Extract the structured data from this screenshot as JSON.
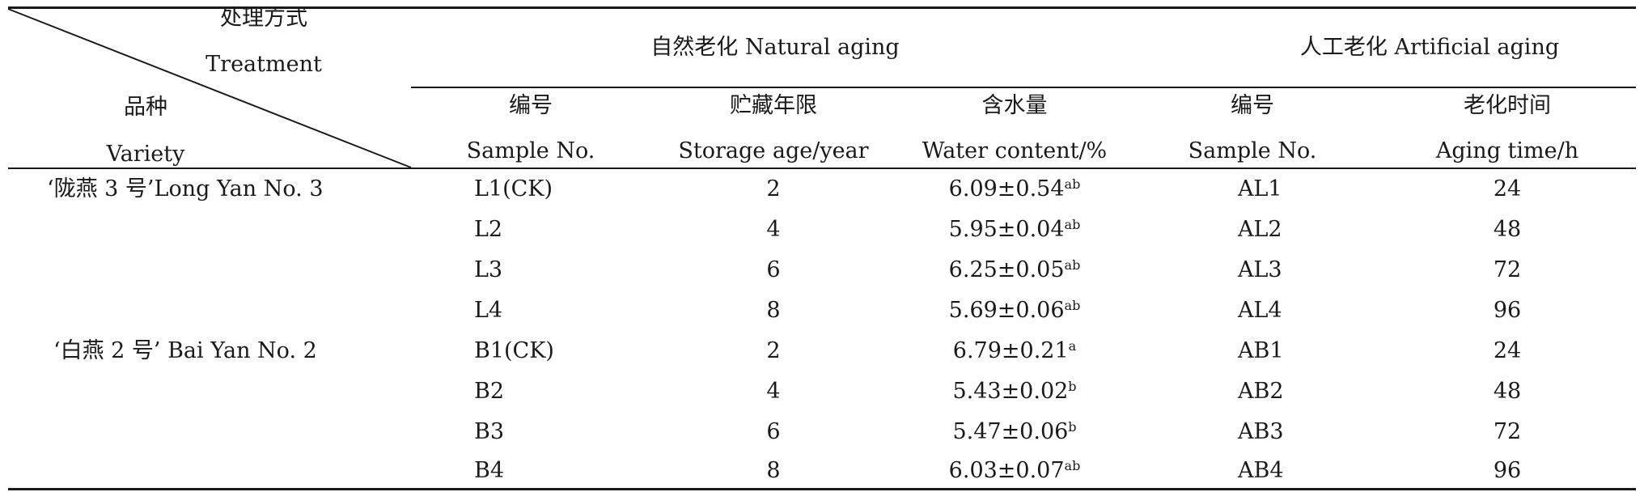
{
  "header": {
    "corner_top_cn": "处理方式",
    "corner_top_en": "Treatment",
    "corner_bottom_cn": "品种",
    "corner_bottom_en": "Variety",
    "natural_group": "自然老化 Natural aging",
    "artificial_group": "人工老化 Artificial aging",
    "columns": [
      {
        "cn": "编号",
        "en": "Sample No."
      },
      {
        "cn": "贮藏年限",
        "en": "Storage age/year"
      },
      {
        "cn": "含水量",
        "en": "Water content/%"
      },
      {
        "cn": "编号",
        "en": "Sample No."
      },
      {
        "cn": "老化时间",
        "en": "Aging time/h"
      }
    ]
  },
  "rows": [
    {
      "variety": "‘陇燕 3 号’Long Yan No. 3",
      "sample": "L1(CK)",
      "storage": "2",
      "water": "6.09±0.54",
      "sig": "ab",
      "art_sample": "AL1",
      "aging": "24"
    },
    {
      "variety": "",
      "sample": "L2",
      "storage": "4",
      "water": "5.95±0.04",
      "sig": "ab",
      "art_sample": "AL2",
      "aging": "48"
    },
    {
      "variety": "",
      "sample": "L3",
      "storage": "6",
      "water": "6.25±0.05",
      "sig": "ab",
      "art_sample": "AL3",
      "aging": "72"
    },
    {
      "variety": "",
      "sample": "L4",
      "storage": "8",
      "water": "5.69±0.06",
      "sig": "ab",
      "art_sample": "AL4",
      "aging": "96"
    },
    {
      "variety": "‘白燕 2 号’ Bai Yan No. 2",
      "sample": "B1(CK)",
      "storage": "2",
      "water": "6.79±0.21",
      "sig": "a",
      "art_sample": "AB1",
      "aging": "24"
    },
    {
      "variety": "",
      "sample": "B2",
      "storage": "4",
      "water": "5.43±0.02",
      "sig": "b",
      "art_sample": "AB2",
      "aging": "48"
    },
    {
      "variety": "",
      "sample": "B3",
      "storage": "6",
      "water": "5.47±0.06",
      "sig": "b",
      "art_sample": "AB3",
      "aging": "72"
    },
    {
      "variety": "",
      "sample": "B4",
      "storage": "8",
      "water": "6.03±0.07",
      "sig": "ab",
      "art_sample": "AB4",
      "aging": "96"
    }
  ]
}
